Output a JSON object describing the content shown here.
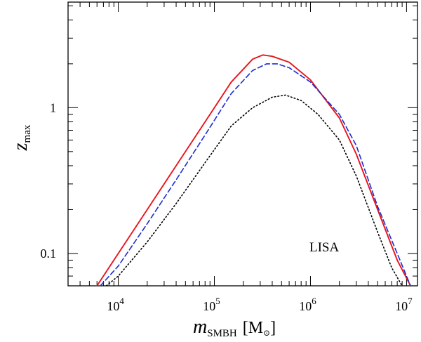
{
  "chart_data": {
    "type": "line",
    "title": "",
    "xlabel": {
      "main": "m",
      "sub": "SMBH",
      "unit_open": "[M",
      "unit_symbol": "⊙",
      "unit_close": "]"
    },
    "ylabel": {
      "main": "z",
      "sub": "max"
    },
    "xscale": "log",
    "yscale": "log",
    "xlim": [
      3000,
      13000000
    ],
    "ylim": [
      0.06,
      5.3
    ],
    "grid": false,
    "legend": "none",
    "annotations": [
      {
        "text": "LISA"
      }
    ],
    "x_ticks": [
      {
        "value": 10000,
        "base": "10",
        "exp": "4"
      },
      {
        "value": 100000,
        "base": "10",
        "exp": "5"
      },
      {
        "value": 1000000,
        "base": "10",
        "exp": "6"
      },
      {
        "value": 10000000,
        "base": "10",
        "exp": "7"
      }
    ],
    "y_ticks": [
      {
        "value": 0.1,
        "label": "0.1"
      },
      {
        "value": 1,
        "label": "1"
      }
    ],
    "series": [
      {
        "style": "solid",
        "color": "#e8141c",
        "x": [
          6000,
          10000,
          20000,
          40000,
          80000,
          150000,
          250000,
          320000,
          400000,
          600000,
          1000000,
          2000000,
          3000000,
          5000000,
          8000000,
          11000000
        ],
        "y": [
          0.06,
          0.1,
          0.2,
          0.4,
          0.8,
          1.5,
          2.15,
          2.3,
          2.25,
          2.05,
          1.55,
          0.85,
          0.48,
          0.2,
          0.09,
          0.06
        ]
      },
      {
        "style": "dashed",
        "color": "#1a2ccf",
        "x": [
          6500,
          10000,
          20000,
          40000,
          80000,
          150000,
          250000,
          350000,
          450000,
          600000,
          1000000,
          2000000,
          3000000,
          5000000,
          8000000,
          11000000
        ],
        "y": [
          0.06,
          0.082,
          0.16,
          0.32,
          0.65,
          1.25,
          1.8,
          2.0,
          2.0,
          1.88,
          1.5,
          0.9,
          0.55,
          0.21,
          0.1,
          0.06
        ]
      },
      {
        "style": "dotted",
        "color": "#000000",
        "x": [
          7500,
          10000,
          20000,
          40000,
          80000,
          150000,
          250000,
          400000,
          550000,
          800000,
          1200000,
          2000000,
          3000000,
          5000000,
          7000000,
          9000000
        ],
        "y": [
          0.06,
          0.07,
          0.12,
          0.22,
          0.42,
          0.75,
          1.0,
          1.18,
          1.22,
          1.12,
          0.9,
          0.6,
          0.34,
          0.14,
          0.08,
          0.06
        ]
      }
    ]
  }
}
